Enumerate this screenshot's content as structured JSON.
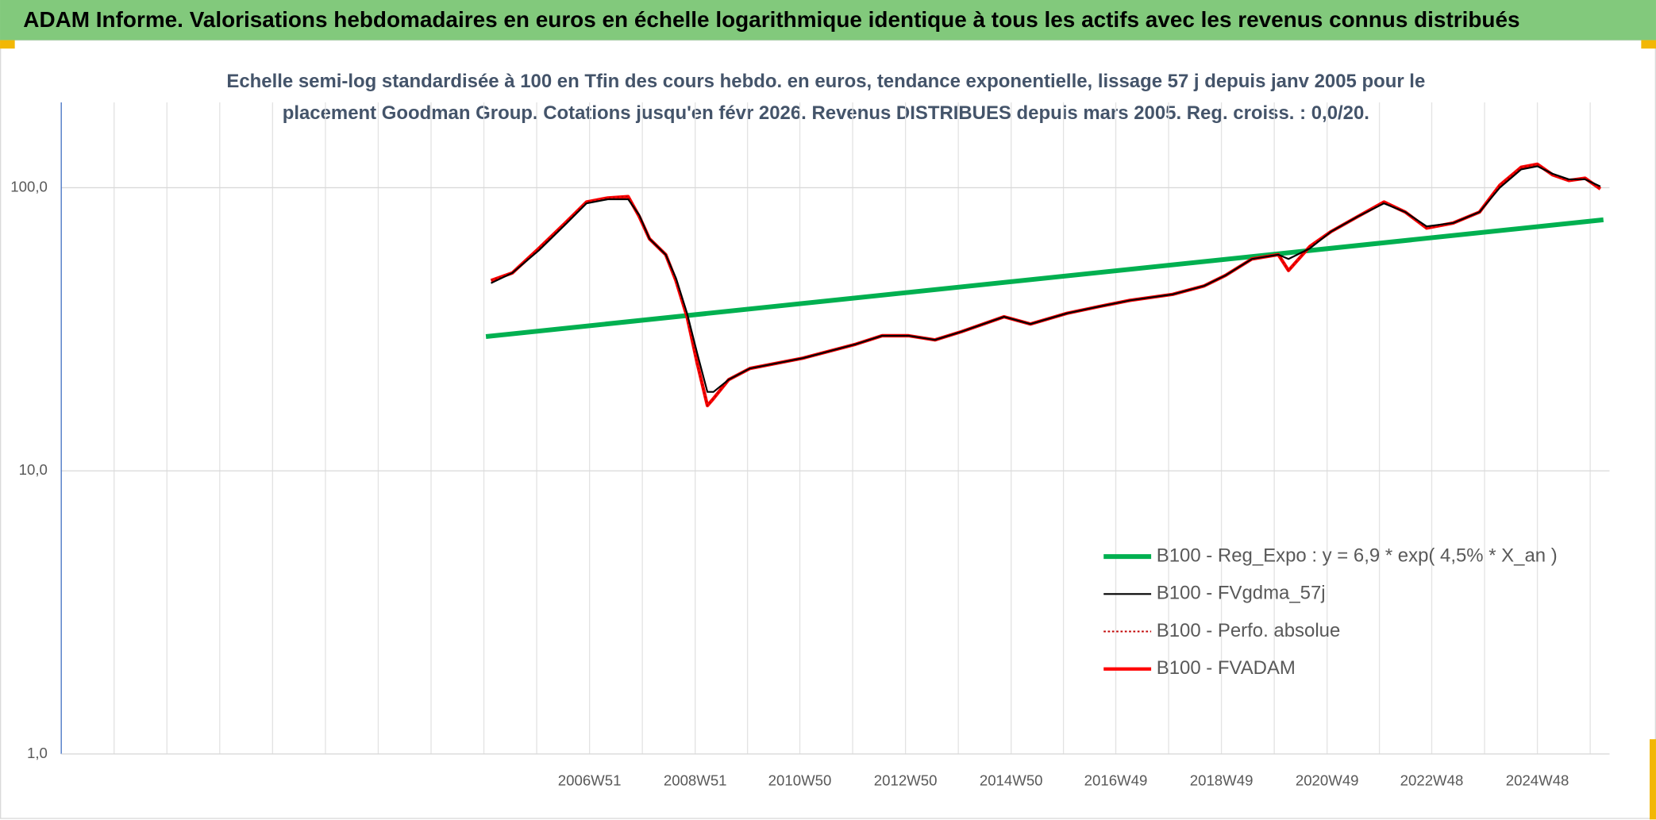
{
  "chart_data": {
    "type": "line",
    "title": "ADAM Informe. Valorisations hebdomadaires en euros en échelle logarithmique identique à tous les actifs avec les revenus connus distribués",
    "subtitle": [
      "Echelle semi-log standardisée à 100 en Tfin des cours hebdo. en euros, tendance exponentielle, lissage 57 j depuis janv 2005 pour le",
      "placement Goodman Group. Cotations jusqu'en févr 2026. Revenus DISTRIBUES depuis mars 2005. Reg. croiss. : 0,0/20."
    ],
    "x": [
      "2005W06",
      "2005W27",
      "2006W01",
      "2006W27",
      "2006W48",
      "2007W17",
      "2007W37",
      "2007W48",
      "2008W06",
      "2008W22",
      "2008W32",
      "2008W43",
      "2009W01",
      "2009W11",
      "2009W17",
      "2009W32",
      "2010W01",
      "2011W01",
      "2012W01",
      "2012W27",
      "2013W01",
      "2013W27",
      "2014W01",
      "2014W43",
      "2015W17",
      "2016W01",
      "2016W32",
      "2017W11",
      "2018W01",
      "2018W32",
      "2019W01",
      "2019W27",
      "2020W01",
      "2020W11",
      "2020W32",
      "2021W01",
      "2021W27",
      "2022W01",
      "2022W22",
      "2022W43",
      "2023W17",
      "2023W43",
      "2024W11",
      "2024W32",
      "2024W48",
      "2025W11",
      "2025W27",
      "2025W43",
      "2026W06"
    ],
    "series": [
      {
        "name": "B100 - Reg_Expo : y = 6,9 * exp( 4,5% *  X_an )",
        "color": "#00b050",
        "x": [
          "2005W01",
          "2026W09"
        ],
        "values": [
          29.8,
          77
        ]
      },
      {
        "name": "B100 - FVgdma_57j",
        "color": "#000000",
        "values": [
          46,
          50,
          60,
          74,
          88,
          91,
          91,
          80,
          66,
          58,
          48,
          36,
          26,
          19,
          19,
          21,
          23,
          25,
          28,
          30,
          30,
          29,
          31,
          35,
          33,
          36,
          38,
          40,
          42,
          45,
          49,
          56,
          58,
          56,
          61,
          70,
          79,
          88,
          82,
          73,
          75,
          82,
          100,
          116,
          119,
          112,
          107,
          107,
          101
        ]
      },
      {
        "name": "B100 - Perfo. absolue",
        "color": "#c00000",
        "dashed": true,
        "values": [
          47,
          50,
          61,
          75,
          89,
          92,
          93,
          79,
          66,
          58,
          47,
          35,
          24,
          17,
          18,
          21,
          23,
          25,
          28,
          30,
          30,
          29,
          31,
          35,
          33,
          36,
          38,
          40,
          42,
          45,
          49,
          56,
          58,
          51,
          62,
          70,
          79,
          89,
          82,
          72,
          75,
          82,
          102,
          118,
          121,
          111,
          106,
          108,
          99
        ]
      },
      {
        "name": "B100 - FVADAM",
        "color": "#ff0000",
        "values": [
          47,
          50,
          61,
          75,
          89,
          92,
          93,
          79,
          66,
          58,
          47,
          35,
          24,
          17,
          18,
          21,
          23,
          25,
          28,
          30,
          30,
          29,
          31,
          35,
          33,
          36,
          38,
          40,
          42,
          45,
          49,
          56,
          58,
          51,
          62,
          70,
          79,
          89,
          82,
          72,
          75,
          82,
          102,
          118,
          121,
          111,
          106,
          108,
          99
        ]
      }
    ],
    "xlim": [
      "1996W51",
      "2026W15"
    ],
    "xticks": [
      "2006W51",
      "2008W51",
      "2010W50",
      "2012W50",
      "2014W50",
      "2016W49",
      "2018W49",
      "2020W49",
      "2022W48",
      "2024W48"
    ],
    "ylim": [
      1,
      200
    ],
    "yticks": [
      {
        "value": 1,
        "label": "1,0"
      },
      {
        "value": 10,
        "label": "10,0"
      },
      {
        "value": 100,
        "label": "100,0"
      }
    ],
    "log_y": true,
    "grid": true,
    "legend": "lower right"
  }
}
